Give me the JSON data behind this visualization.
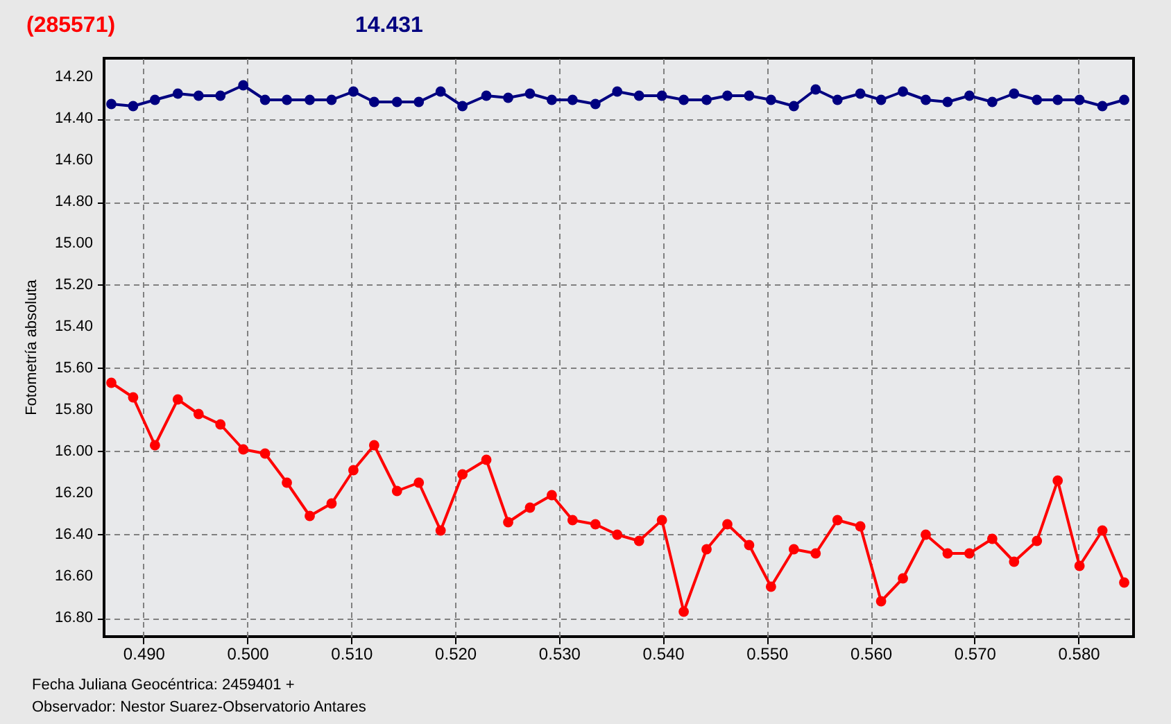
{
  "chart_data": {
    "type": "line",
    "title": "(285571)",
    "subtitle": "14.431",
    "xlabel": "Fecha Juliana Geocéntrica: 2459401 +",
    "ylabel": "Fotometría absoluta",
    "annotations": [
      "Observador: Nestor Suarez-Observatorio Antares"
    ],
    "x": [
      0.4869,
      0.489,
      0.4911,
      0.4933,
      0.4953,
      0.4974,
      0.4996,
      0.5017,
      0.5038,
      0.506,
      0.5081,
      0.5102,
      0.5122,
      0.5144,
      0.5165,
      0.5186,
      0.5207,
      0.523,
      0.5251,
      0.5272,
      0.5293,
      0.5313,
      0.5335,
      0.5356,
      0.5377,
      0.5399,
      0.542,
      0.5442,
      0.5462,
      0.5483,
      0.5504,
      0.5526,
      0.5547,
      0.5568,
      0.559,
      0.561,
      0.5631,
      0.5653,
      0.5674,
      0.5695,
      0.5717,
      0.5738,
      0.576,
      0.578,
      0.5801,
      0.5823,
      0.5844
    ],
    "series": [
      {
        "color": "#000080",
        "values": [
          14.33,
          14.34,
          14.31,
          14.28,
          14.29,
          14.29,
          14.24,
          14.31,
          14.31,
          14.31,
          14.31,
          14.27,
          14.32,
          14.32,
          14.32,
          14.27,
          14.34,
          14.29,
          14.3,
          14.28,
          14.31,
          14.31,
          14.33,
          14.27,
          14.29,
          14.29,
          14.31,
          14.31,
          14.29,
          14.29,
          14.31,
          14.34,
          14.26,
          14.31,
          14.28,
          14.31,
          14.27,
          14.31,
          14.32,
          14.29,
          14.32,
          14.28,
          14.31,
          14.31,
          14.31,
          14.34,
          14.31
        ]
      },
      {
        "color": "#ff0000",
        "values": [
          15.67,
          15.74,
          15.97,
          15.75,
          15.82,
          15.87,
          15.99,
          16.01,
          16.15,
          16.31,
          16.25,
          16.09,
          15.97,
          16.19,
          16.15,
          16.38,
          16.11,
          16.04,
          16.34,
          16.27,
          16.21,
          16.33,
          16.35,
          16.4,
          16.43,
          16.33,
          16.77,
          16.47,
          16.35,
          16.45,
          16.65,
          16.47,
          16.49,
          16.33,
          16.36,
          16.72,
          16.61,
          16.4,
          16.49,
          16.49,
          16.42,
          16.53,
          16.43,
          16.14,
          16.55,
          16.38,
          16.63
        ]
      }
    ],
    "xlim": [
      0.4862,
      0.5853
    ],
    "ylim": [
      16.89,
      14.11
    ],
    "xticks": [
      {
        "value": 0.49,
        "label": "0.490"
      },
      {
        "value": 0.5,
        "label": "0.500"
      },
      {
        "value": 0.51,
        "label": "0.510"
      },
      {
        "value": 0.52,
        "label": "0.520"
      },
      {
        "value": 0.53,
        "label": "0.530"
      },
      {
        "value": 0.54,
        "label": "0.540"
      },
      {
        "value": 0.55,
        "label": "0.550"
      },
      {
        "value": 0.56,
        "label": "0.560"
      },
      {
        "value": 0.57,
        "label": "0.570"
      },
      {
        "value": 0.58,
        "label": "0.580"
      }
    ],
    "yticks": [
      {
        "value": 14.2,
        "label": "14.20"
      },
      {
        "value": 14.4,
        "label": "14.40"
      },
      {
        "value": 14.6,
        "label": "14.60"
      },
      {
        "value": 14.8,
        "label": "14.80"
      },
      {
        "value": 15.0,
        "label": "15.00"
      },
      {
        "value": 15.2,
        "label": "15.20"
      },
      {
        "value": 15.4,
        "label": "15.40"
      },
      {
        "value": 15.6,
        "label": "15.60"
      },
      {
        "value": 15.8,
        "label": "15.80"
      },
      {
        "value": 16.0,
        "label": "16.00"
      },
      {
        "value": 16.2,
        "label": "16.20"
      },
      {
        "value": 16.4,
        "label": "16.40"
      },
      {
        "value": 16.6,
        "label": "16.60"
      },
      {
        "value": 16.8,
        "label": "16.80"
      }
    ],
    "grid": true,
    "marker": "circle",
    "line_style": "solid"
  }
}
